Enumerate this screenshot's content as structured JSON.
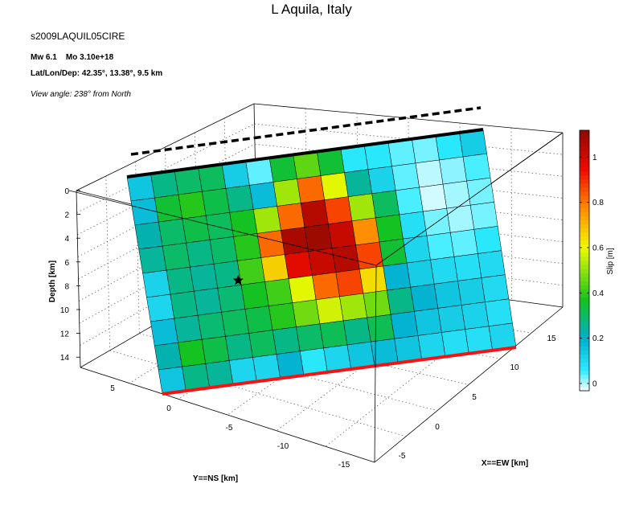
{
  "header": {
    "title": "L Aquila, Italy",
    "event_id": "s2009LAQUIL05CIRE",
    "magnitude": "Mw 6.1",
    "moment": "Mo 3.10e+18",
    "location": "Lat/Lon/Dep: 42.35°, 13.38°, 9.5 km",
    "view_angle": "View angle: 238° from North"
  },
  "chart_data": {
    "type": "heatmap",
    "title": "L Aquila, Italy",
    "xlabel": "X==EW [km]",
    "ylabel": "Y==NS [km]",
    "zlabel": "Depth [km]",
    "colorbar_label": "Slip [m]",
    "colormap": "jet",
    "color_range": [
      0,
      1.15
    ],
    "depth_ticks": [
      "0",
      "2",
      "4",
      "6",
      "8",
      "10",
      "12",
      "14"
    ],
    "ns_ticks": [
      "5",
      "0",
      "-5",
      "-10",
      "-15"
    ],
    "ew_ticks": [
      "-5",
      "0",
      "5",
      "10",
      "15"
    ],
    "colorbar_ticks": [
      "0",
      "0.2",
      "0.4",
      "0.6",
      "0.8",
      "1"
    ],
    "grid_rows": 9,
    "grid_cols": 15,
    "slip_m": [
      [
        0.18,
        0.3,
        0.33,
        0.34,
        0.16,
        0.07,
        0.38,
        0.48,
        0.38,
        0.1,
        0.1,
        0.07,
        0.06,
        0.1,
        0.16
      ],
      [
        0.2,
        0.38,
        0.42,
        0.36,
        0.3,
        0.2,
        0.55,
        0.85,
        0.62,
        0.28,
        0.15,
        0.07,
        0.03,
        0.05,
        0.08
      ],
      [
        0.26,
        0.33,
        0.36,
        0.34,
        0.4,
        0.55,
        0.85,
        1.08,
        0.9,
        0.55,
        0.34,
        0.08,
        0.02,
        0.04,
        0.06
      ],
      [
        0.28,
        0.33,
        0.3,
        0.33,
        0.42,
        0.85,
        1.1,
        1.12,
        1.05,
        0.8,
        0.4,
        0.12,
        0.06,
        0.04,
        0.06
      ],
      [
        0.15,
        0.3,
        0.28,
        0.3,
        0.45,
        0.7,
        1.0,
        1.05,
        1.08,
        0.9,
        0.38,
        0.14,
        0.08,
        0.07,
        0.1
      ],
      [
        0.14,
        0.3,
        0.28,
        0.32,
        0.4,
        0.45,
        0.62,
        0.85,
        0.9,
        0.68,
        0.22,
        0.16,
        0.13,
        0.12,
        0.13
      ],
      [
        0.2,
        0.28,
        0.32,
        0.34,
        0.36,
        0.42,
        0.5,
        0.6,
        0.55,
        0.5,
        0.3,
        0.22,
        0.18,
        0.16,
        0.13
      ],
      [
        0.26,
        0.4,
        0.36,
        0.3,
        0.34,
        0.3,
        0.33,
        0.35,
        0.3,
        0.35,
        0.22,
        0.18,
        0.16,
        0.15,
        0.12
      ],
      [
        0.18,
        0.3,
        0.28,
        0.14,
        0.14,
        0.22,
        0.1,
        0.14,
        0.18,
        0.2,
        0.18,
        0.14,
        0.12,
        0.12,
        0.14
      ]
    ],
    "hypocenter": {
      "row": 4.8,
      "col": 3.9
    },
    "grid": true
  }
}
